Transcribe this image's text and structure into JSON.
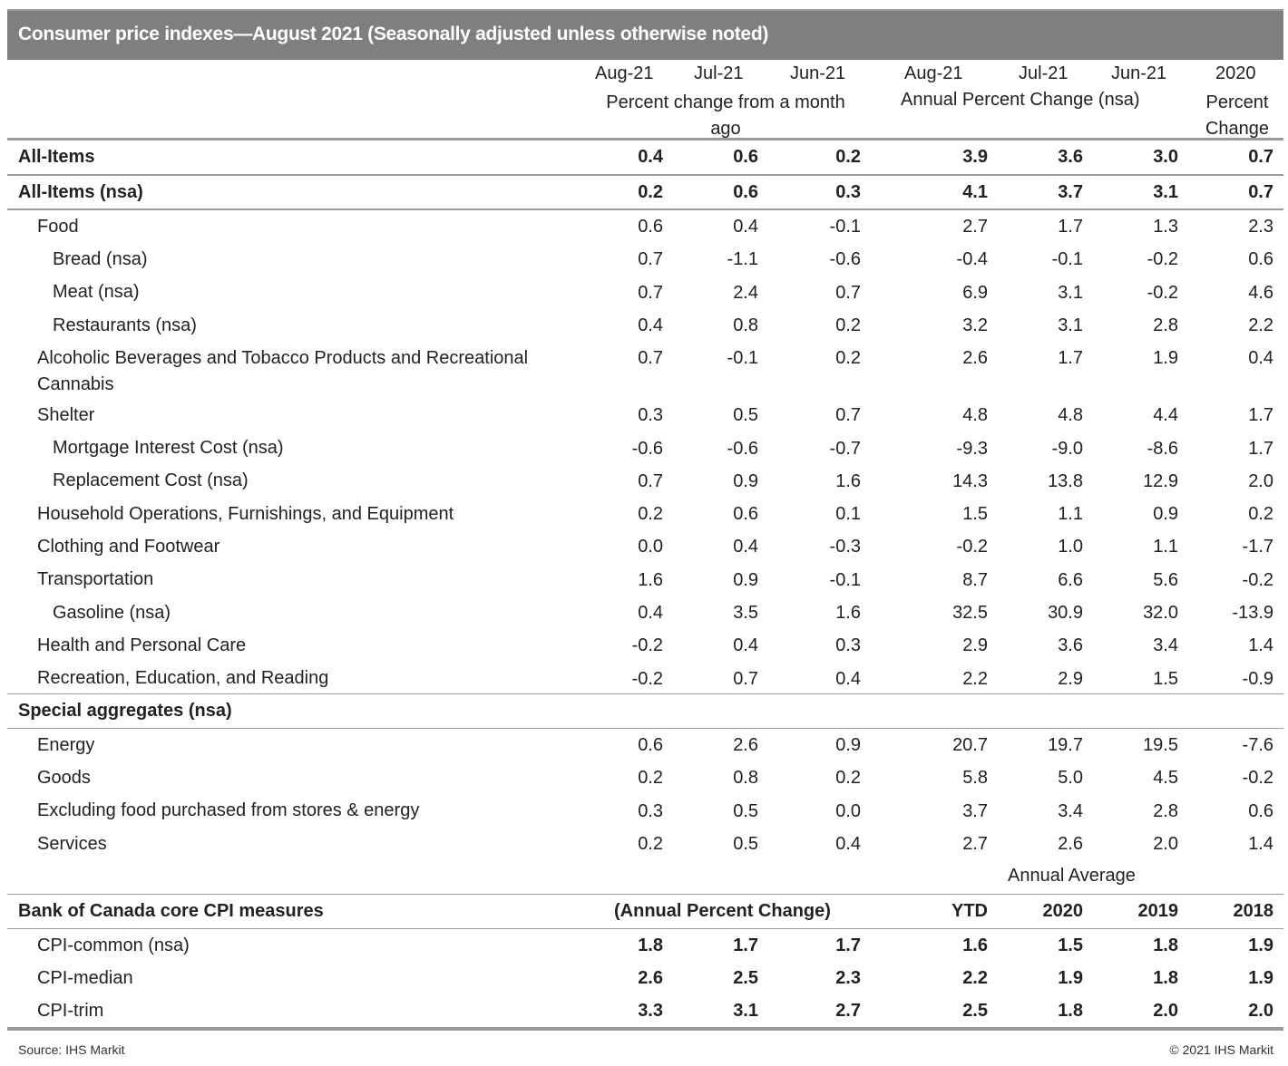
{
  "title": "Consumer price indexes—August 2021 (Seasonally adjusted unless otherwise noted)",
  "header": {
    "columns": [
      "Aug-21",
      "Jul-21",
      "Jun-21",
      "Aug-21",
      "Jul-21",
      "Jun-21",
      "2020"
    ],
    "group_monthly": "Percent change from a month ago",
    "group_annual": "Annual Percent Change (nsa)",
    "group_2020": "Percent Change"
  },
  "main_rows": [
    {
      "label": "All-Items",
      "values": [
        "0.4",
        "0.6",
        "0.2",
        "3.9",
        "3.6",
        "3.0",
        "0.7"
      ]
    },
    {
      "label": "All-Items (nsa)",
      "values": [
        "0.2",
        "0.6",
        "0.3",
        "4.1",
        "3.7",
        "3.1",
        "0.7"
      ]
    }
  ],
  "detail_rows": [
    {
      "label": "Food",
      "indent": 1,
      "values": [
        "0.6",
        "0.4",
        "-0.1",
        "2.7",
        "1.7",
        "1.3",
        "2.3"
      ]
    },
    {
      "label": "Bread (nsa)",
      "indent": 2,
      "values": [
        "0.7",
        "-1.1",
        "-0.6",
        "-0.4",
        "-0.1",
        "-0.2",
        "0.6"
      ]
    },
    {
      "label": "Meat (nsa)",
      "indent": 2,
      "values": [
        "0.7",
        "2.4",
        "0.7",
        "6.9",
        "3.1",
        "-0.2",
        "4.6"
      ]
    },
    {
      "label": "Restaurants (nsa)",
      "indent": 2,
      "values": [
        "0.4",
        "0.8",
        "0.2",
        "3.2",
        "3.1",
        "2.8",
        "2.2"
      ]
    },
    {
      "label": "Alcoholic Beverages and Tobacco Products and Recreational Cannabis",
      "indent": 1,
      "values": [
        "0.7",
        "-0.1",
        "0.2",
        "2.6",
        "1.7",
        "1.9",
        "0.4"
      ]
    },
    {
      "label": "Shelter",
      "indent": 1,
      "values": [
        "0.3",
        "0.5",
        "0.7",
        "4.8",
        "4.8",
        "4.4",
        "1.7"
      ]
    },
    {
      "label": "Mortgage Interest Cost (nsa)",
      "indent": 2,
      "values": [
        "-0.6",
        "-0.6",
        "-0.7",
        "-9.3",
        "-9.0",
        "-8.6",
        "1.7"
      ]
    },
    {
      "label": "Replacement Cost (nsa)",
      "indent": 2,
      "values": [
        "0.7",
        "0.9",
        "1.6",
        "14.3",
        "13.8",
        "12.9",
        "2.0"
      ]
    },
    {
      "label": "Household Operations, Furnishings, and Equipment",
      "indent": 1,
      "values": [
        "0.2",
        "0.6",
        "0.1",
        "1.5",
        "1.1",
        "0.9",
        "0.2"
      ]
    },
    {
      "label": "Clothing and Footwear",
      "indent": 1,
      "values": [
        "0.0",
        "0.4",
        "-0.3",
        "-0.2",
        "1.0",
        "1.1",
        "-1.7"
      ]
    },
    {
      "label": "Transportation",
      "indent": 1,
      "values": [
        "1.6",
        "0.9",
        "-0.1",
        "8.7",
        "6.6",
        "5.6",
        "-0.2"
      ]
    },
    {
      "label": "Gasoline (nsa)",
      "indent": 2,
      "values": [
        "0.4",
        "3.5",
        "1.6",
        "32.5",
        "30.9",
        "32.0",
        "-13.9"
      ]
    },
    {
      "label": "Health and Personal Care",
      "indent": 1,
      "values": [
        "-0.2",
        "0.4",
        "0.3",
        "2.9",
        "3.6",
        "3.4",
        "1.4"
      ]
    },
    {
      "label": "Recreation, Education, and Reading",
      "indent": 1,
      "values": [
        "-0.2",
        "0.7",
        "0.4",
        "2.2",
        "2.9",
        "1.5",
        "-0.9"
      ]
    }
  ],
  "special": {
    "label": "Special aggregates (nsa)",
    "rows": [
      {
        "label": "Energy",
        "values": [
          "0.6",
          "2.6",
          "0.9",
          "20.7",
          "19.7",
          "19.5",
          "-7.6"
        ]
      },
      {
        "label": "Goods",
        "values": [
          "0.2",
          "0.8",
          "0.2",
          "5.8",
          "5.0",
          "4.5",
          "-0.2"
        ]
      },
      {
        "label": "Excluding food purchased from stores & energy",
        "values": [
          "0.3",
          "0.5",
          "0.0",
          "3.7",
          "3.4",
          "2.8",
          "0.6"
        ]
      },
      {
        "label": "Services",
        "values": [
          "0.2",
          "0.5",
          "0.4",
          "2.7",
          "2.6",
          "2.0",
          "1.4"
        ]
      }
    ]
  },
  "core": {
    "annual_average_label": "Annual Average",
    "label": "Bank of Canada core CPI measures",
    "subtitle": "(Annual Percent Change)",
    "columns": [
      "YTD",
      "2020",
      "2019",
      "2018"
    ],
    "rows": [
      {
        "label": "CPI-common (nsa)",
        "values": [
          "1.8",
          "1.7",
          "1.7",
          "1.6",
          "1.5",
          "1.8",
          "1.9"
        ]
      },
      {
        "label": "CPI-median",
        "values": [
          "2.6",
          "2.5",
          "2.3",
          "2.2",
          "1.9",
          "1.8",
          "1.9"
        ]
      },
      {
        "label": "CPI-trim",
        "values": [
          "3.3",
          "3.1",
          "2.7",
          "2.5",
          "1.8",
          "2.0",
          "2.0"
        ]
      }
    ]
  },
  "footer": {
    "source": "Source: IHS Markit",
    "copyright": "© 2021 IHS Markit"
  },
  "colors": {
    "title_bar": "#7f7f7f",
    "rule": "#9a9a9a"
  }
}
